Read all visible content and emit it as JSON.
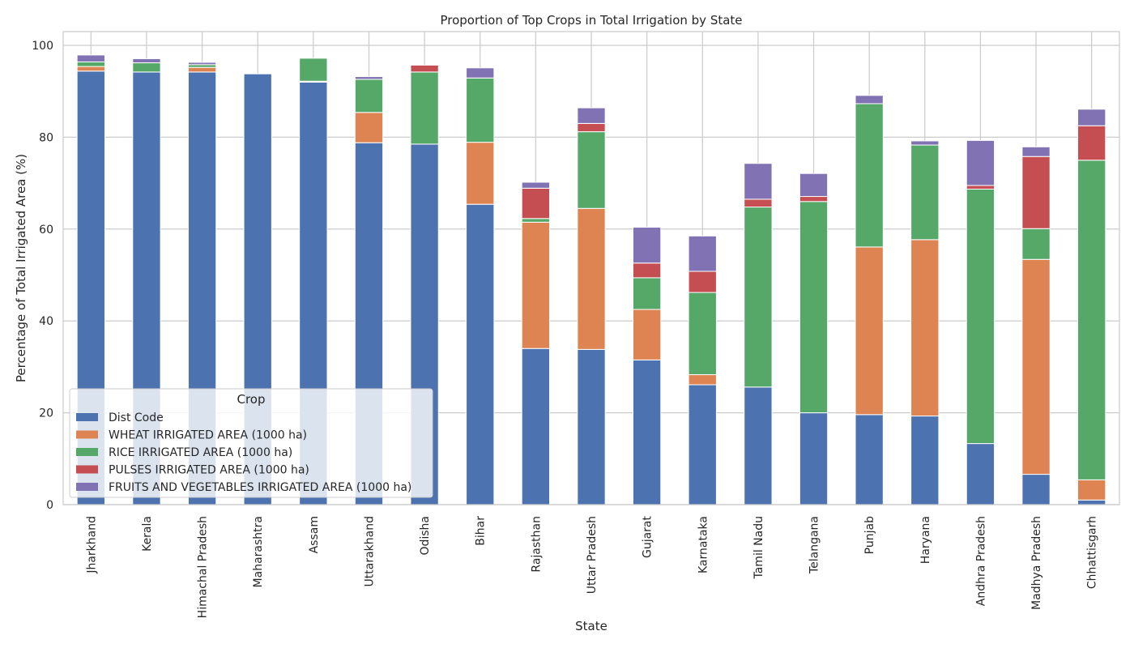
{
  "chart_data": {
    "type": "bar",
    "stacked": true,
    "title": "Proportion of Top Crops in Total Irrigation by State",
    "xlabel": "State",
    "ylabel": "Percentage of Total Irrigated Area (%)",
    "ylim": [
      0,
      103
    ],
    "yticks": [
      0,
      20,
      40,
      60,
      80,
      100
    ],
    "grid": true,
    "legend_title": "Crop",
    "legend_position": "lower-left",
    "categories": [
      "Jharkhand",
      "Kerala",
      "Himachal Pradesh",
      "Maharashtra",
      "Assam",
      "Uttarakhand",
      "Odisha",
      "Bihar",
      "Rajasthan",
      "Uttar Pradesh",
      "Gujarat",
      "Karnataka",
      "Tamil Nadu",
      "Telangana",
      "Punjab",
      "Haryana",
      "Andhra Pradesh",
      "Madhya Pradesh",
      "Chhattisgarh"
    ],
    "series": [
      {
        "name": "Dist Code",
        "color": "#4c72b0",
        "values": [
          94.4,
          94.2,
          94.2,
          93.8,
          92.0,
          78.8,
          78.5,
          65.4,
          34.0,
          33.8,
          31.5,
          26.1,
          25.6,
          20.0,
          19.6,
          19.3,
          13.3,
          6.6,
          1.0
        ]
      },
      {
        "name": "WHEAT IRRIGATED AREA (1000 ha)",
        "color": "#dd8452",
        "values": [
          1.0,
          0.0,
          1.0,
          0.0,
          0.2,
          6.6,
          0.0,
          13.5,
          27.5,
          30.7,
          11.0,
          2.2,
          0.0,
          0.0,
          36.5,
          38.4,
          0.0,
          46.8,
          4.4
        ]
      },
      {
        "name": "RICE IRRIGATED AREA (1000 ha)",
        "color": "#55a868",
        "values": [
          1.0,
          2.0,
          0.6,
          0.0,
          5.0,
          7.2,
          15.7,
          14.0,
          0.8,
          16.7,
          6.9,
          17.9,
          39.2,
          46.0,
          31.2,
          20.6,
          55.4,
          6.7,
          69.6
        ]
      },
      {
        "name": "PULSES IRRIGATED AREA (1000 ha)",
        "color": "#c44e52",
        "values": [
          0.0,
          0.0,
          0.0,
          0.0,
          0.0,
          0.0,
          1.5,
          0.0,
          6.6,
          1.8,
          3.2,
          4.6,
          1.7,
          1.1,
          0.0,
          0.0,
          0.8,
          15.7,
          7.5
        ]
      },
      {
        "name": "FRUITS AND VEGETABLES IRRIGATED AREA (1000 ha)",
        "color": "#8172b3",
        "values": [
          1.5,
          0.9,
          0.5,
          0.0,
          0.0,
          0.6,
          0.0,
          2.2,
          1.3,
          3.4,
          7.8,
          7.7,
          7.8,
          5.0,
          1.8,
          0.9,
          9.8,
          2.1,
          3.6
        ]
      }
    ]
  }
}
